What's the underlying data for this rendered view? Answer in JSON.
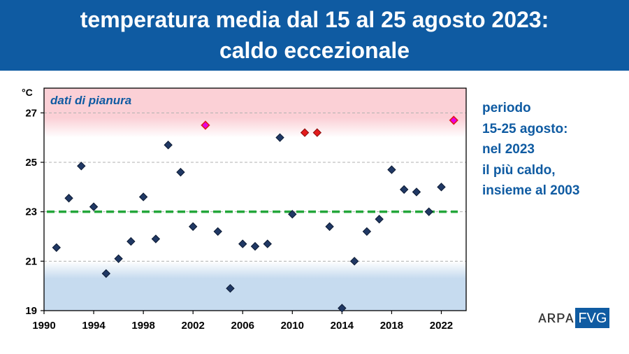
{
  "title": {
    "line1": "temperatura media dal 15 al 25 agosto 2023:",
    "line2": "caldo eccezionale"
  },
  "side_note": [
    "periodo",
    "15-25 agosto:",
    "nel 2023",
    "il più caldo,",
    "insieme al 2003"
  ],
  "logo": {
    "arpa": "ARPA",
    "fvg": "FVG"
  },
  "colors": {
    "banner": "#0f5ba2",
    "point": "#203864",
    "point_highlight": "#e31b1b",
    "point_max": "#e600e6",
    "reference_line": "#23a63a",
    "hot_band": "#fbd0d6",
    "cold_band": "#c6dbef"
  },
  "chart_data": {
    "type": "scatter",
    "annotation": "dati di pianura",
    "ylabel": "°C",
    "xlim": [
      1990,
      2024
    ],
    "ylim": [
      19,
      28
    ],
    "xticks": [
      1990,
      1994,
      1998,
      2002,
      2006,
      2010,
      2014,
      2018,
      2022
    ],
    "yticks": [
      19,
      21,
      23,
      25,
      27
    ],
    "reference_line": 23,
    "bands": {
      "hot_above": 26,
      "cold_below": 21
    },
    "points": [
      {
        "x": 1991,
        "y": 21.55
      },
      {
        "x": 1992,
        "y": 23.55
      },
      {
        "x": 1993,
        "y": 24.85
      },
      {
        "x": 1994,
        "y": 23.2
      },
      {
        "x": 1995,
        "y": 20.5
      },
      {
        "x": 1996,
        "y": 21.1
      },
      {
        "x": 1997,
        "y": 21.8
      },
      {
        "x": 1998,
        "y": 23.6
      },
      {
        "x": 1999,
        "y": 21.9
      },
      {
        "x": 2000,
        "y": 25.7
      },
      {
        "x": 2001,
        "y": 24.6
      },
      {
        "x": 2002,
        "y": 22.4
      },
      {
        "x": 2003,
        "y": 26.5,
        "highlight": "max"
      },
      {
        "x": 2004,
        "y": 22.2
      },
      {
        "x": 2005,
        "y": 19.9
      },
      {
        "x": 2006,
        "y": 21.7
      },
      {
        "x": 2007,
        "y": 21.6
      },
      {
        "x": 2008,
        "y": 21.7
      },
      {
        "x": 2009,
        "y": 26.0
      },
      {
        "x": 2010,
        "y": 22.9
      },
      {
        "x": 2011,
        "y": 26.2,
        "highlight": "hot"
      },
      {
        "x": 2012,
        "y": 26.2,
        "highlight": "hot"
      },
      {
        "x": 2013,
        "y": 22.4
      },
      {
        "x": 2014,
        "y": 19.1
      },
      {
        "x": 2015,
        "y": 21.0
      },
      {
        "x": 2016,
        "y": 22.2
      },
      {
        "x": 2017,
        "y": 22.7
      },
      {
        "x": 2018,
        "y": 24.7
      },
      {
        "x": 2019,
        "y": 23.9
      },
      {
        "x": 2020,
        "y": 23.8
      },
      {
        "x": 2021,
        "y": 23.0
      },
      {
        "x": 2022,
        "y": 24.0
      },
      {
        "x": 2023,
        "y": 26.7,
        "highlight": "max"
      }
    ]
  }
}
